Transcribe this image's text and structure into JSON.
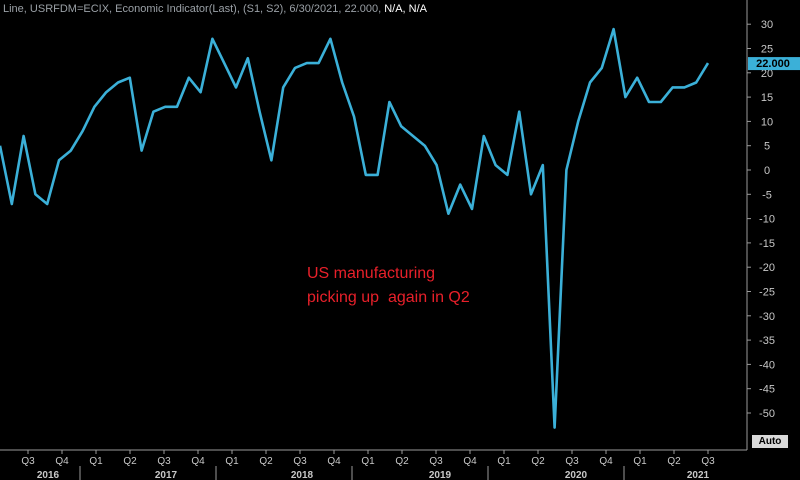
{
  "header": {
    "label": "Line, USRFDM=ECIX, Economic Indicator(Last), (S1, S2), 6/30/2021, 22.000,",
    "na": "N/A, N/A"
  },
  "annotation": {
    "line1": "US manufacturing",
    "line2": "picking up  again in Q2"
  },
  "auto_label": "Auto",
  "chart_data": {
    "type": "line",
    "series": [
      {
        "color": "#3bb0d8",
        "values": [
          5,
          -7,
          7,
          -5,
          -7,
          2,
          4,
          8,
          13,
          16,
          18,
          19,
          4,
          12,
          13,
          13,
          19,
          16,
          27,
          22,
          17,
          23,
          12,
          2,
          17,
          21,
          22,
          22,
          27,
          18,
          11,
          -1,
          -1,
          14,
          9,
          7,
          5,
          1,
          -9,
          -3,
          -8,
          7,
          1,
          -1,
          12,
          -5,
          1,
          -53,
          0,
          10,
          18,
          21,
          29,
          15,
          19,
          14,
          14,
          17,
          17,
          18,
          22
        ]
      }
    ],
    "last_value_label": "22.000",
    "ylim": [
      -55,
      32
    ],
    "y_ticks": [
      30,
      25,
      20,
      15,
      10,
      5,
      0,
      -5,
      -10,
      -15,
      -20,
      -25,
      -30,
      -35,
      -40,
      -45,
      -50
    ],
    "quarter_ticks": [
      "Q3",
      "Q4",
      "Q1",
      "Q2",
      "Q3",
      "Q4",
      "Q1",
      "Q2",
      "Q3",
      "Q4",
      "Q1",
      "Q2",
      "Q3",
      "Q4",
      "Q1",
      "Q2",
      "Q3",
      "Q4",
      "Q1",
      "Q2",
      "Q3"
    ],
    "years": [
      "2016",
      "2017",
      "2018",
      "2019",
      "2020",
      "2021"
    ],
    "colors": {
      "background": "#000000",
      "axis_text": "#c8c8c8",
      "grid": "#3a3a3a",
      "line": "#3bb0d8",
      "annotation": "#e8202a"
    }
  }
}
